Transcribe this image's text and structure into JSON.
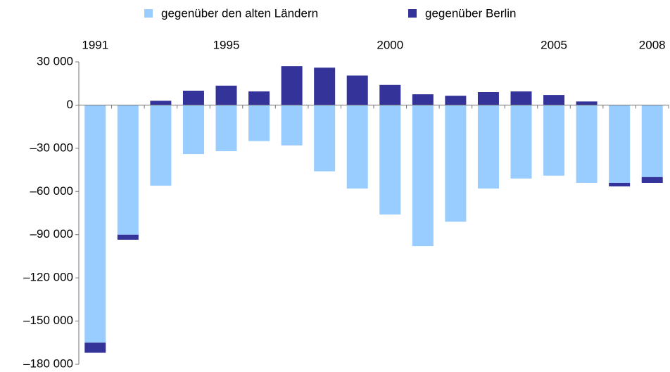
{
  "chart_data": {
    "type": "bar",
    "stacked": true,
    "categories": [
      "1991",
      null,
      null,
      null,
      "1995",
      null,
      null,
      null,
      null,
      "2000",
      null,
      null,
      null,
      null,
      "2005",
      null,
      null,
      "2008"
    ],
    "series": [
      {
        "name": "gegenüber den alten Ländern",
        "color": "#99ccff",
        "values": [
          -165000,
          -90000,
          -56000,
          -34000,
          -32000,
          -25000,
          -28000,
          -46000,
          -58000,
          -76000,
          -98000,
          -81000,
          -58000,
          -51000,
          -49000,
          -54000,
          -54000,
          -50000
        ]
      },
      {
        "name": "gegenüber Berlin",
        "color": "#333399",
        "values": [
          -7000,
          -3500,
          3000,
          10000,
          13500,
          9500,
          27000,
          26000,
          20500,
          14000,
          7500,
          6500,
          9000,
          9500,
          7000,
          2500,
          -2500,
          -4000
        ]
      }
    ],
    "ylim": [
      -180000,
      30000
    ],
    "yticks": [
      {
        "value": 30000,
        "label": "30 000"
      },
      0,
      {
        "value": -30000,
        "label": "–30 000"
      },
      {
        "value": -60000,
        "label": "–60 000"
      },
      {
        "value": -90000,
        "label": "–90 000"
      },
      {
        "value": -120000,
        "label": "–120 000"
      },
      {
        "value": -150000,
        "label": "–150 000"
      },
      {
        "value": -180000,
        "label": "–180 000"
      }
    ],
    "legend": "top"
  }
}
